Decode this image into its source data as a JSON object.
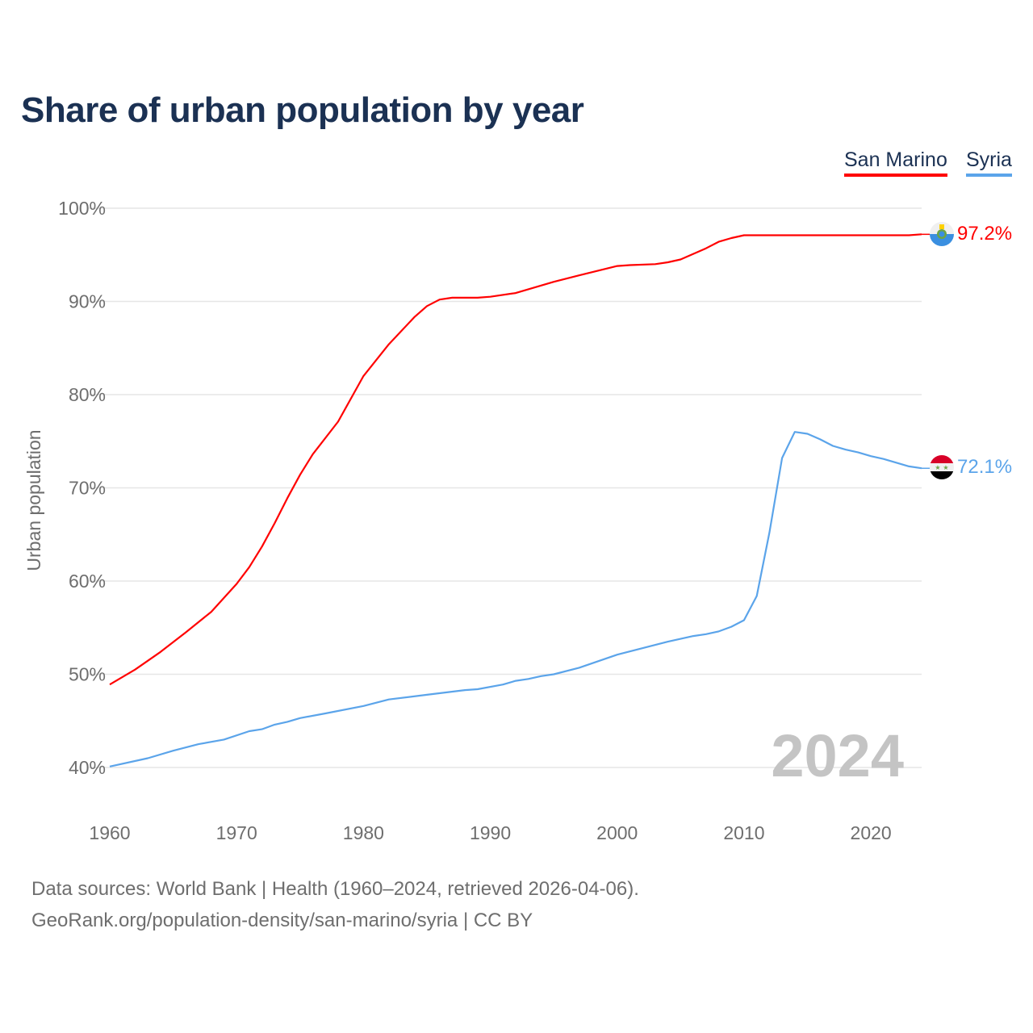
{
  "chart_data": {
    "type": "line",
    "title": "Share of urban population by year",
    "ylabel": "Urban population",
    "xlabel": "",
    "xlim": [
      1960,
      2024
    ],
    "ylim": [
      40,
      100
    ],
    "x_ticks": [
      1960,
      1970,
      1980,
      1990,
      2000,
      2010,
      2020
    ],
    "x_tick_labels": [
      "1960",
      "1970",
      "1980",
      "1990",
      "2000",
      "2010",
      "2020"
    ],
    "y_ticks": [
      40,
      50,
      60,
      70,
      80,
      90,
      100
    ],
    "y_tick_labels": [
      "40%",
      "50%",
      "60%",
      "70%",
      "80%",
      "90%",
      "100%"
    ],
    "grid": true,
    "legend_position": "top-right",
    "year_watermark": "2024",
    "series": [
      {
        "name": "San Marino",
        "color": "#ff0000",
        "end_label": "97.2%",
        "flag": "san-marino-flag",
        "points": [
          [
            1960,
            48.9
          ],
          [
            1962,
            50.5
          ],
          [
            1964,
            52.4
          ],
          [
            1966,
            54.5
          ],
          [
            1968,
            56.7
          ],
          [
            1970,
            59.7
          ],
          [
            1971,
            61.5
          ],
          [
            1972,
            63.7
          ],
          [
            1973,
            66.2
          ],
          [
            1974,
            68.9
          ],
          [
            1975,
            71.4
          ],
          [
            1976,
            73.6
          ],
          [
            1978,
            77.1
          ],
          [
            1980,
            82.0
          ],
          [
            1982,
            85.4
          ],
          [
            1984,
            88.3
          ],
          [
            1985,
            89.5
          ],
          [
            1986,
            90.2
          ],
          [
            1987,
            90.4
          ],
          [
            1989,
            90.4
          ],
          [
            1990,
            90.5
          ],
          [
            1992,
            90.9
          ],
          [
            1995,
            92.1
          ],
          [
            1997,
            92.8
          ],
          [
            2000,
            93.8
          ],
          [
            2001,
            93.9
          ],
          [
            2003,
            94.0
          ],
          [
            2004,
            94.2
          ],
          [
            2005,
            94.5
          ],
          [
            2007,
            95.7
          ],
          [
            2008,
            96.4
          ],
          [
            2009,
            96.8
          ],
          [
            2010,
            97.1
          ],
          [
            2023,
            97.1
          ],
          [
            2024,
            97.2
          ]
        ]
      },
      {
        "name": "Syria",
        "color": "#5ba4ea",
        "end_label": "72.1%",
        "flag": "syria-flag",
        "points": [
          [
            1960,
            40.1
          ],
          [
            1963,
            41.0
          ],
          [
            1965,
            41.8
          ],
          [
            1967,
            42.5
          ],
          [
            1969,
            43.0
          ],
          [
            1971,
            43.9
          ],
          [
            1972,
            44.1
          ],
          [
            1973,
            44.6
          ],
          [
            1974,
            44.9
          ],
          [
            1975,
            45.3
          ],
          [
            1977,
            45.8
          ],
          [
            1980,
            46.6
          ],
          [
            1982,
            47.3
          ],
          [
            1985,
            47.8
          ],
          [
            1988,
            48.3
          ],
          [
            1989,
            48.4
          ],
          [
            1991,
            48.9
          ],
          [
            1992,
            49.3
          ],
          [
            1993,
            49.5
          ],
          [
            1994,
            49.8
          ],
          [
            1995,
            50.0
          ],
          [
            1997,
            50.7
          ],
          [
            2000,
            52.1
          ],
          [
            2004,
            53.5
          ],
          [
            2006,
            54.1
          ],
          [
            2007,
            54.3
          ],
          [
            2008,
            54.6
          ],
          [
            2009,
            55.1
          ],
          [
            2010,
            55.8
          ],
          [
            2011,
            58.4
          ],
          [
            2012,
            65.2
          ],
          [
            2013,
            73.2
          ],
          [
            2014,
            76.0
          ],
          [
            2015,
            75.8
          ],
          [
            2016,
            75.2
          ],
          [
            2017,
            74.5
          ],
          [
            2018,
            74.1
          ],
          [
            2019,
            73.8
          ],
          [
            2020,
            73.4
          ],
          [
            2021,
            73.1
          ],
          [
            2022,
            72.7
          ],
          [
            2023,
            72.3
          ],
          [
            2024,
            72.1
          ]
        ]
      }
    ]
  },
  "footer": {
    "sources": "Data sources: World Bank | Health (1960–2024, retrieved 2026-04-06).",
    "attribution": "GeoRank.org/population-density/san-marino/syria | CC BY"
  }
}
